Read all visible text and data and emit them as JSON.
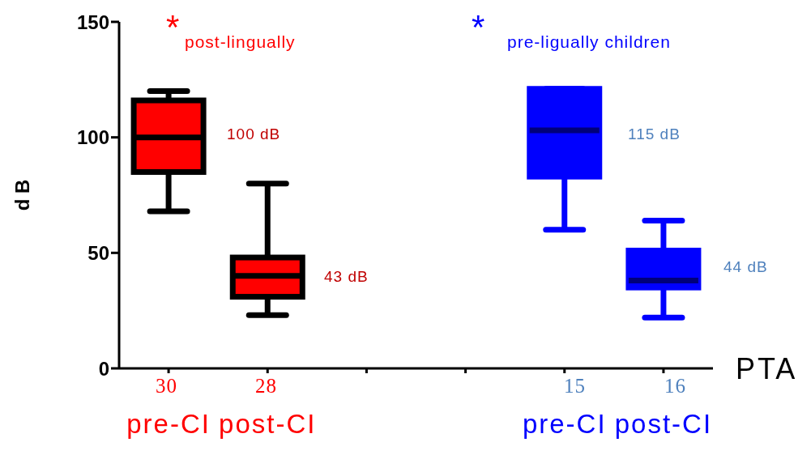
{
  "chart_data": {
    "type": "box",
    "xlabel": "PTA",
    "ylabel": "d B",
    "categories": [
      "pre-CI",
      "post-CI",
      null,
      null,
      "pre-CI",
      "post-CI"
    ],
    "ylim": [
      0,
      150
    ],
    "yticks": [
      0,
      50,
      100,
      150
    ],
    "series": [
      {
        "color": "#ff0000",
        "boxes": [
          {
            "low": 68,
            "q1": 85,
            "median": 100,
            "q3": 116,
            "high": 120
          },
          {
            "low": 23,
            "q1": 31,
            "median": 40,
            "q3": 48,
            "high": 80
          },
          null,
          null,
          null,
          null
        ]
      },
      {
        "color": "#0000ff",
        "boxes": [
          null,
          null,
          null,
          null,
          {
            "low": 60,
            "q1": 83,
            "median": 103,
            "q3": 121,
            "high": 121
          },
          {
            "low": 22,
            "q1": 35,
            "median": 38,
            "q3": 51,
            "high": 64
          }
        ]
      }
    ],
    "annotations": [
      "*",
      "post-lingually",
      "*",
      "pre-ligually children",
      "100 dB",
      "43 dB",
      "115 dB",
      "44 dB",
      "30",
      "28",
      "15",
      "16"
    ]
  }
}
